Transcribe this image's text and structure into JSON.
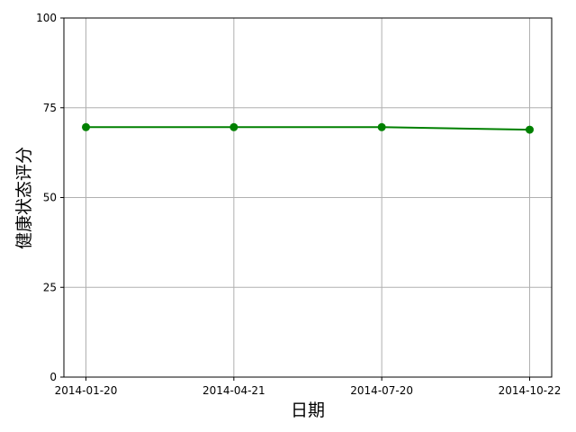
{
  "chart_data": {
    "type": "line",
    "title": "",
    "xlabel": "日期",
    "ylabel": "健康状态评分",
    "x": [
      "2014-01-20",
      "2014-04-21",
      "2014-07-20",
      "2014-10-22"
    ],
    "series": [
      {
        "values": [
          69.6,
          69.6,
          69.6,
          68.9
        ],
        "color": "#008000",
        "marker": "circle"
      }
    ],
    "ylim": [
      0,
      100
    ],
    "yticks": [
      "0",
      "25",
      "50",
      "75",
      "100"
    ],
    "grid": true
  }
}
